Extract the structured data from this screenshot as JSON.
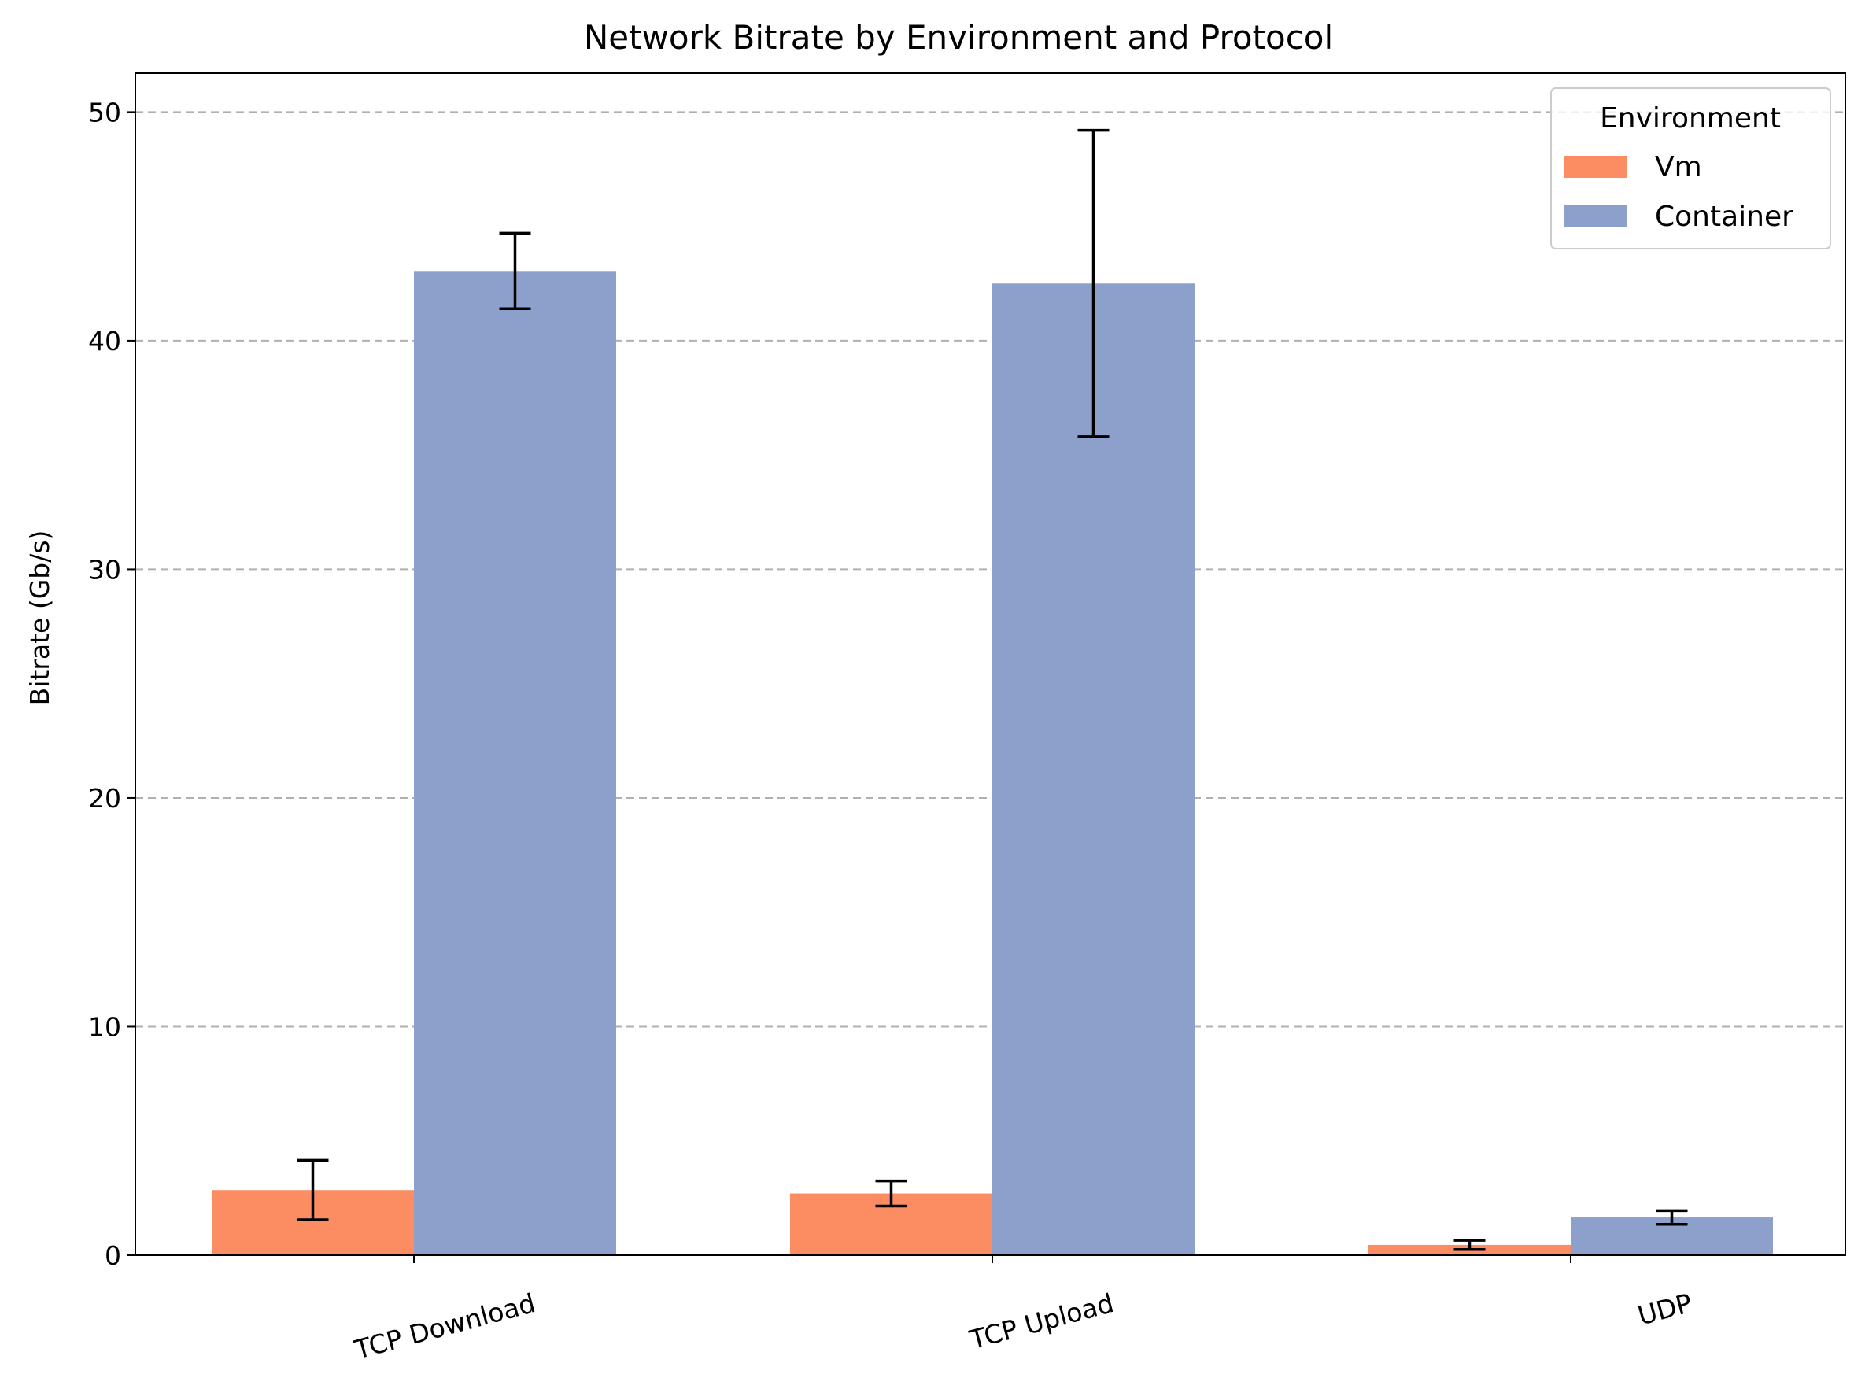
{
  "chart_data": {
    "type": "bar",
    "title": "Network Bitrate by Environment and Protocol",
    "xlabel": "",
    "ylabel": "Bitrate (Gb/s)",
    "categories": [
      "TCP Download",
      "TCP Upload",
      "UDP"
    ],
    "ylim": [
      0,
      51.7
    ],
    "yticks": [
      0,
      10,
      20,
      30,
      40,
      50
    ],
    "grid": "y-dashed",
    "legend": {
      "title": "Environment",
      "placement": "top-right"
    },
    "series": [
      {
        "name": "Vm",
        "color": "#fc8d62",
        "values": [
          2.85,
          2.7,
          0.45
        ],
        "errors": [
          1.3,
          0.55,
          0.2
        ]
      },
      {
        "name": "Container",
        "color": "#8da0cb",
        "values": [
          43.05,
          42.5,
          1.65
        ],
        "errors": [
          1.65,
          6.7,
          0.3
        ]
      }
    ]
  }
}
